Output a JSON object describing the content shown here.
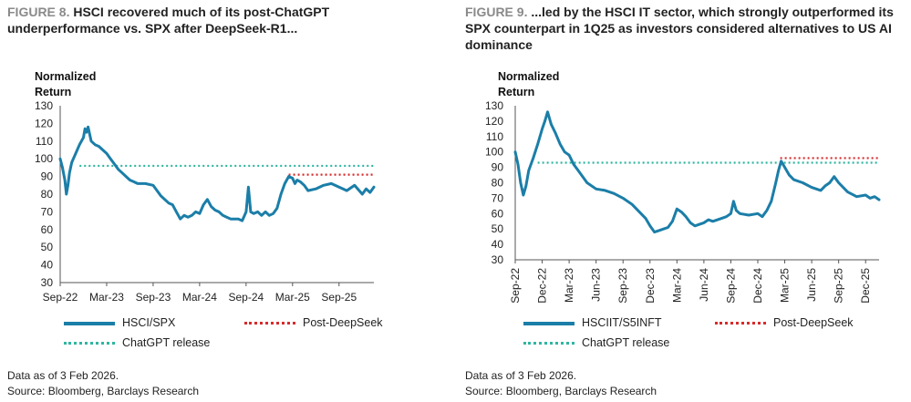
{
  "chart_data": [
    {
      "type": "line",
      "figure_label": "FIGURE 8.",
      "title": "HSCI recovered much of its post-ChatGPT underperformance vs. SPX after DeepSeek-R1...",
      "ylabel": "Normalized Return",
      "ylim": [
        30,
        130
      ],
      "yticks": [
        30,
        40,
        50,
        60,
        70,
        80,
        90,
        100,
        110,
        120,
        130
      ],
      "xlim": [
        0,
        40.5
      ],
      "xticks": [
        {
          "x": 0,
          "label": "Sep-22"
        },
        {
          "x": 6,
          "label": "Mar-23"
        },
        {
          "x": 12,
          "label": "Sep-23"
        },
        {
          "x": 18,
          "label": "Mar-24"
        },
        {
          "x": 24,
          "label": "Sep-24"
        },
        {
          "x": 30,
          "label": "Mar-25"
        },
        {
          "x": 36,
          "label": "Sep-25"
        }
      ],
      "series": [
        {
          "name": "HSCI/SPX",
          "color": "#1b7ea8",
          "style": "solid",
          "x": [
            0,
            0.3,
            0.6,
            0.8,
            1.0,
            1.2,
            1.5,
            2.0,
            2.5,
            3.0,
            3.2,
            3.4,
            3.6,
            4.0,
            4.5,
            5.0,
            5.5,
            6.0,
            6.5,
            7.0,
            7.5,
            8.0,
            8.5,
            9.0,
            9.5,
            10.0,
            11.0,
            12.0,
            13.0,
            14.0,
            14.5,
            15.0,
            15.5,
            16.0,
            16.5,
            17.0,
            17.5,
            18.0,
            18.5,
            19.0,
            19.5,
            20.0,
            20.5,
            21.0,
            21.5,
            22.0,
            23.0,
            23.5,
            24.0,
            24.3,
            24.6,
            25.0,
            25.5,
            26.0,
            26.5,
            27.0,
            27.5,
            28.0,
            28.5,
            29.0,
            29.5,
            30.0,
            30.3,
            30.6,
            31.0,
            31.5,
            32.0,
            33.0,
            34.0,
            35.0,
            36.0,
            37.0,
            38.0,
            39.0,
            39.5,
            40.0,
            40.5
          ],
          "values": [
            100,
            95,
            88,
            80,
            85,
            92,
            98,
            103,
            108,
            112,
            117,
            115,
            118,
            110,
            108,
            107,
            105,
            103,
            100,
            97,
            94,
            92,
            90,
            88,
            87,
            86,
            86,
            85,
            79,
            75,
            74,
            70,
            66,
            68,
            67,
            68,
            70,
            69,
            74,
            77,
            73,
            71,
            70,
            68,
            67,
            66,
            66,
            65,
            70,
            84,
            70,
            69,
            70,
            68,
            70,
            68,
            69,
            72,
            80,
            86,
            90,
            89,
            86,
            88,
            87,
            85,
            82,
            83,
            85,
            86,
            84,
            82,
            85,
            80,
            83,
            81,
            84
          ]
        },
        {
          "name": "Post-DeepSeek",
          "color": "#d62b2b",
          "style": "dotted",
          "y": 91,
          "x_start": 29.5,
          "x_end": 40.5
        },
        {
          "name": "ChatGPT release",
          "color": "#2fb6a0",
          "style": "dotted",
          "y": 96,
          "x_start": 2.5,
          "x_end": 40.5
        }
      ],
      "legend": [
        {
          "name": "HSCI/SPX",
          "style": "solid"
        },
        {
          "name": "Post-DeepSeek",
          "style": "red-dotted"
        },
        {
          "name": "ChatGPT release",
          "style": "teal-dotted"
        }
      ],
      "footnote": "Data as of 3 Feb 2026.",
      "source": "Source: Bloomberg, Barclays Research"
    },
    {
      "type": "line",
      "figure_label": "FIGURE 9.",
      "title": "...led by the HSCI IT sector, which strongly outperformed its SPX counterpart in 1Q25 as investors considered alternatives to US AI dominance",
      "ylabel": "Normalized Return",
      "ylim": [
        30,
        130
      ],
      "yticks": [
        30,
        40,
        50,
        60,
        70,
        80,
        90,
        100,
        110,
        120,
        130
      ],
      "xlim": [
        0,
        40.5
      ],
      "xticks": [
        {
          "x": 0,
          "label": "Sep-22"
        },
        {
          "x": 3,
          "label": "Dec-22"
        },
        {
          "x": 6,
          "label": "Mar-23"
        },
        {
          "x": 9,
          "label": "Jun-23"
        },
        {
          "x": 12,
          "label": "Sep-23"
        },
        {
          "x": 15,
          "label": "Dec-23"
        },
        {
          "x": 18,
          "label": "Mar-24"
        },
        {
          "x": 21,
          "label": "Jun-24"
        },
        {
          "x": 24,
          "label": "Sep-24"
        },
        {
          "x": 27,
          "label": "Dec-24"
        },
        {
          "x": 30,
          "label": "Mar-25"
        },
        {
          "x": 33,
          "label": "Jun-25"
        },
        {
          "x": 36,
          "label": "Sep-25"
        },
        {
          "x": 39,
          "label": "Dec-25"
        }
      ],
      "series": [
        {
          "name": "HSCIIT/S5INFT",
          "color": "#1b7ea8",
          "style": "solid",
          "x": [
            0,
            0.3,
            0.6,
            0.9,
            1.2,
            1.5,
            2.0,
            2.5,
            3.0,
            3.3,
            3.6,
            4.0,
            4.5,
            5.0,
            5.5,
            6.0,
            6.5,
            7.0,
            7.5,
            8.0,
            9.0,
            10.0,
            11.0,
            12.0,
            13.0,
            14.0,
            14.5,
            15.0,
            15.5,
            16.0,
            16.5,
            17.0,
            17.5,
            18.0,
            18.5,
            19.0,
            19.5,
            20.0,
            20.5,
            21.0,
            21.5,
            22.0,
            23.0,
            23.5,
            24.0,
            24.3,
            24.6,
            25.0,
            26.0,
            27.0,
            27.5,
            28.0,
            28.5,
            29.0,
            29.3,
            29.6,
            30.0,
            30.5,
            31.0,
            32.0,
            33.0,
            34.0,
            34.5,
            35.0,
            35.5,
            36.0,
            37.0,
            38.0,
            39.0,
            39.5,
            40.0,
            40.5
          ],
          "values": [
            100,
            92,
            80,
            72,
            78,
            88,
            96,
            105,
            115,
            120,
            126,
            118,
            112,
            105,
            100,
            98,
            92,
            88,
            84,
            80,
            76,
            75,
            73,
            70,
            66,
            60,
            57,
            52,
            48,
            49,
            50,
            51,
            55,
            63,
            61,
            58,
            54,
            52,
            53,
            54,
            56,
            55,
            57,
            58,
            60,
            68,
            62,
            60,
            59,
            60,
            58,
            62,
            68,
            80,
            88,
            94,
            90,
            85,
            82,
            80,
            77,
            75,
            78,
            80,
            84,
            80,
            74,
            71,
            72,
            70,
            71,
            69
          ]
        },
        {
          "name": "Post-DeepSeek",
          "color": "#d62b2b",
          "style": "dotted",
          "y": 96,
          "x_start": 29.5,
          "x_end": 40.5
        },
        {
          "name": "ChatGPT release",
          "color": "#2fb6a0",
          "style": "dotted",
          "y": 93,
          "x_start": 2.5,
          "x_end": 40.5
        }
      ],
      "legend": [
        {
          "name": "HSCIIT/S5INFT",
          "style": "solid"
        },
        {
          "name": "Post-DeepSeek",
          "style": "red-dotted"
        },
        {
          "name": "ChatGPT release",
          "style": "teal-dotted"
        }
      ],
      "footnote": "Data as of 3 Feb 2026.",
      "source": "Source: Bloomberg, Barclays Research"
    }
  ]
}
